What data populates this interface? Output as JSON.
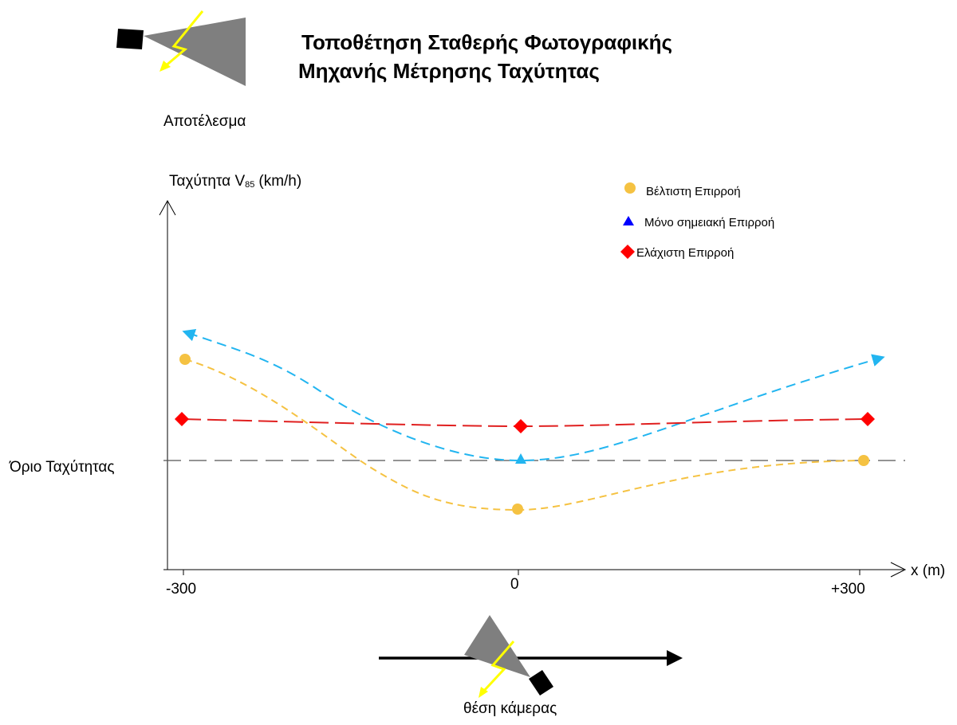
{
  "title_line1": "Τοποθέτηση Σταθερής Φωτογραφικής",
  "title_line2": "Μηχανής Μέτρησης Ταχύτητας",
  "section_label": "Αποτέλεσμα",
  "y_axis_label": "Ταχύτητα V",
  "y_axis_subscript": "85",
  "y_axis_unit": "(km/h)",
  "x_axis_label": "x (m)",
  "reference_label": "Όριο Ταχύτητας",
  "camera_label": "θέση κάμερας",
  "colors": {
    "best": "#F5C242",
    "point": "#0000FF",
    "point_curve": "#22B5F0",
    "min": "#FF0000",
    "min_curve": "#E02020",
    "camera_body": "#000000",
    "camera_beam": "#7F7F7F",
    "lightning": "#FFFF00",
    "reference_line": "#555555"
  },
  "chart_data": {
    "type": "line",
    "x_ticks": [
      "-300",
      "0",
      "+300"
    ],
    "x_tick_values": [
      -300,
      0,
      300
    ],
    "reference_line": {
      "label": "Όριο Ταχύτητας"
    },
    "series": [
      {
        "name": "Βέλτιστη Επιρροή",
        "marker": "circle",
        "x": [
          -300,
          0,
          300
        ],
        "relative_to_limit": [
          "above",
          "below",
          "equal"
        ]
      },
      {
        "name": "Μόνο σημειακή Επιρροή",
        "marker": "triangle",
        "x": [
          -300,
          0,
          300
        ],
        "relative_to_limit": [
          "above",
          "equal",
          "above"
        ],
        "extends_beyond_range": true
      },
      {
        "name": "Ελάχιστη Επιρροή",
        "marker": "diamond",
        "x": [
          -300,
          0,
          300
        ],
        "relative_to_limit": [
          "above",
          "above",
          "above"
        ]
      }
    ],
    "legend_position": "top-right"
  },
  "icons": {
    "top_camera": "speed-camera-icon",
    "bottom_camera": "speed-camera-icon",
    "road_arrow": "road-direction-arrow-icon"
  }
}
